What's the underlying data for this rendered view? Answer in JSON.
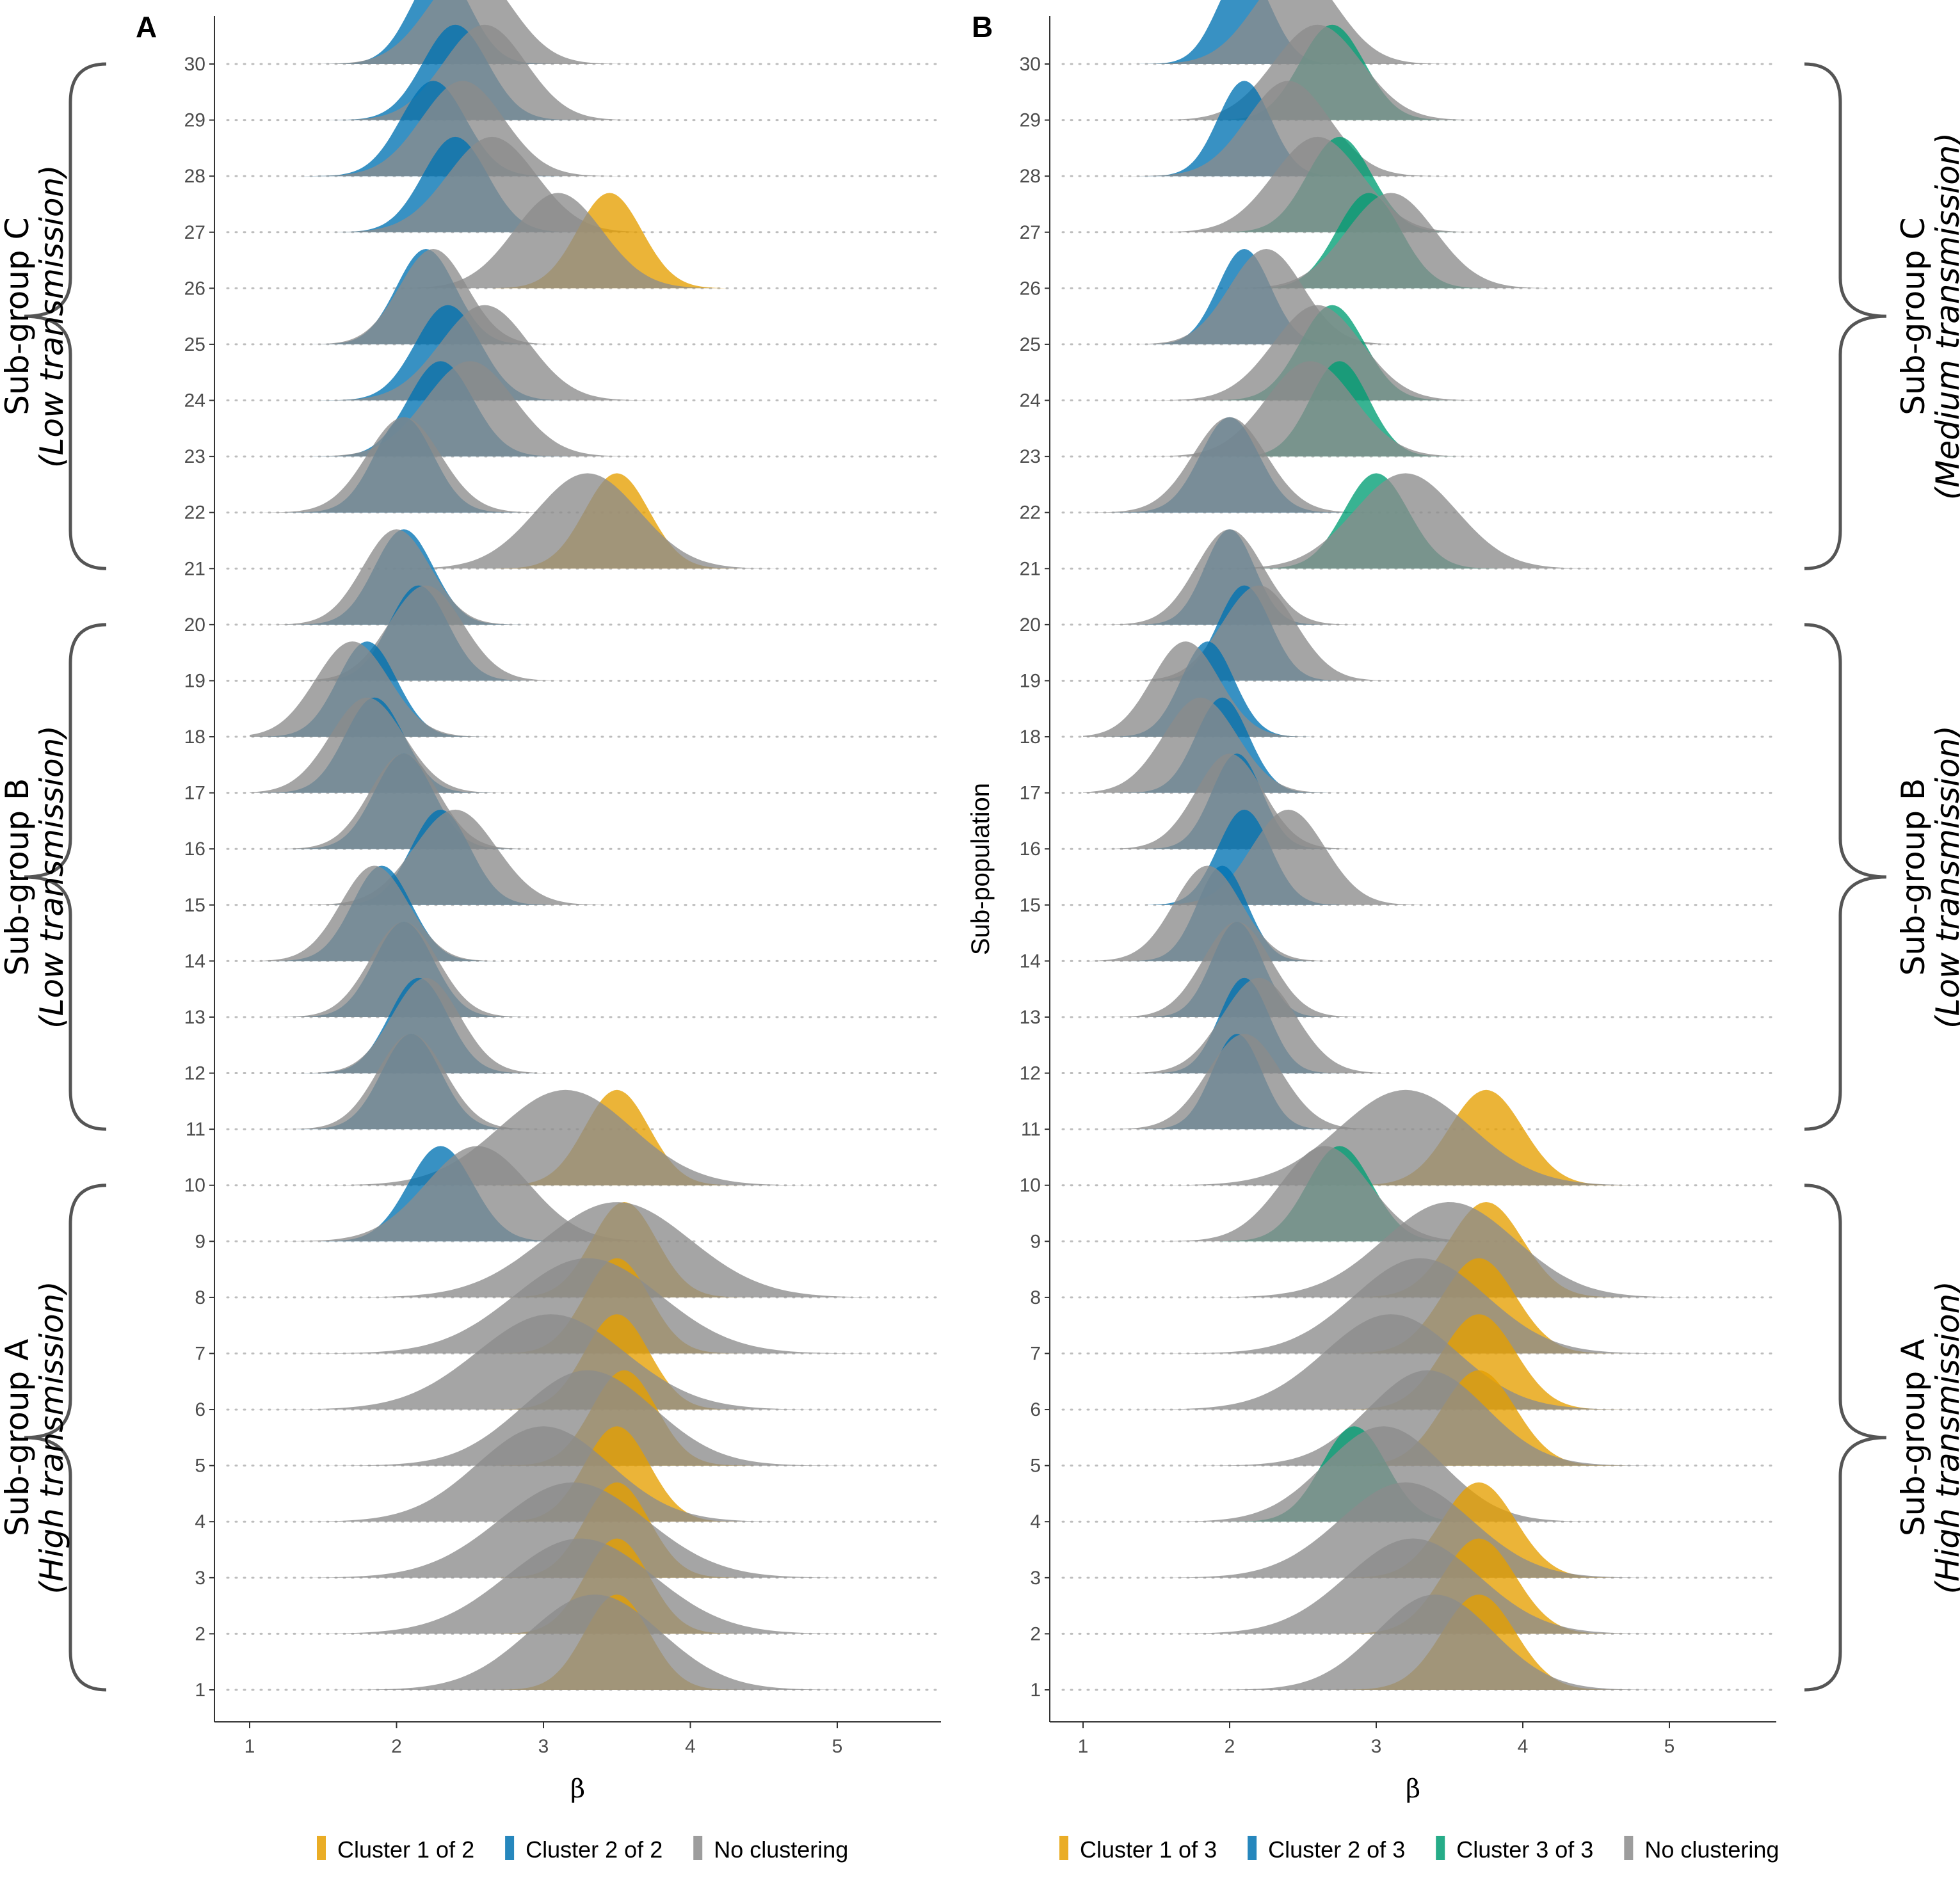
{
  "colors": {
    "cluster_1": "#E69F00",
    "cluster_2": "#0072B2",
    "cluster_3": "#009E73",
    "no_clustering": "#8C8C8C"
  },
  "chart_data": [
    {
      "type": "ridgeline",
      "panel_label": "A",
      "xlabel": "β",
      "ylabel": "",
      "xlim": [
        0.8,
        5.7
      ],
      "xticks": [
        1,
        2,
        3,
        4,
        5
      ],
      "ylim": [
        1,
        30
      ],
      "yticks": [
        1,
        2,
        3,
        4,
        5,
        6,
        7,
        8,
        9,
        10,
        11,
        12,
        13,
        14,
        15,
        16,
        17,
        18,
        19,
        20,
        21,
        22,
        23,
        24,
        25,
        26,
        27,
        28,
        29,
        30
      ],
      "grid": "dotted horizontal baselines",
      "legend": {
        "placement": "bottom",
        "entries": [
          {
            "label": "Cluster 1 of 2",
            "color_key": "cluster_1"
          },
          {
            "label": "Cluster 2 of 2",
            "color_key": "cluster_2"
          },
          {
            "label": "No clustering",
            "color_key": "no_clustering"
          }
        ]
      },
      "groups": [
        {
          "name": "Sub-group A",
          "description": "(High transmission)",
          "range": [
            1,
            10
          ],
          "side": "left"
        },
        {
          "name": "Sub-group B",
          "description": "(Low transmission)",
          "range": [
            11,
            20
          ],
          "side": "left"
        },
        {
          "name": "Sub-group C",
          "description": "(Low transmission)",
          "range": [
            21,
            30
          ],
          "side": "left"
        }
      ],
      "ridges": [
        {
          "row": 1,
          "cluster": {
            "key": "cluster_1",
            "mean": 3.5,
            "sd": 0.22
          },
          "nocl": {
            "mean": 3.35,
            "sd": 0.45
          }
        },
        {
          "row": 2,
          "cluster": {
            "key": "cluster_1",
            "mean": 3.5,
            "sd": 0.22
          },
          "nocl": {
            "mean": 3.25,
            "sd": 0.5
          }
        },
        {
          "row": 3,
          "cluster": {
            "key": "cluster_1",
            "mean": 3.5,
            "sd": 0.22
          },
          "nocl": {
            "mean": 3.2,
            "sd": 0.5
          }
        },
        {
          "row": 4,
          "cluster": {
            "key": "cluster_1",
            "mean": 3.5,
            "sd": 0.22
          },
          "nocl": {
            "mean": 3.0,
            "sd": 0.45
          }
        },
        {
          "row": 5,
          "cluster": {
            "key": "cluster_1",
            "mean": 3.55,
            "sd": 0.22
          },
          "nocl": {
            "mean": 3.3,
            "sd": 0.45
          }
        },
        {
          "row": 6,
          "cluster": {
            "key": "cluster_1",
            "mean": 3.5,
            "sd": 0.22
          },
          "nocl": {
            "mean": 3.05,
            "sd": 0.5
          }
        },
        {
          "row": 7,
          "cluster": {
            "key": "cluster_1",
            "mean": 3.5,
            "sd": 0.22
          },
          "nocl": {
            "mean": 3.3,
            "sd": 0.5
          }
        },
        {
          "row": 8,
          "cluster": {
            "key": "cluster_1",
            "mean": 3.55,
            "sd": 0.22
          },
          "nocl": {
            "mean": 3.5,
            "sd": 0.5
          }
        },
        {
          "row": 9,
          "cluster": {
            "key": "cluster_2",
            "mean": 2.3,
            "sd": 0.22
          },
          "nocl": {
            "mean": 2.55,
            "sd": 0.35
          }
        },
        {
          "row": 10,
          "cluster": {
            "key": "cluster_1",
            "mean": 3.5,
            "sd": 0.22
          },
          "nocl": {
            "mean": 3.15,
            "sd": 0.45
          }
        },
        {
          "row": 11,
          "cluster": {
            "key": "cluster_2",
            "mean": 2.1,
            "sd": 0.2
          },
          "nocl": {
            "mean": 2.1,
            "sd": 0.23
          }
        },
        {
          "row": 12,
          "cluster": {
            "key": "cluster_2",
            "mean": 2.15,
            "sd": 0.2
          },
          "nocl": {
            "mean": 2.2,
            "sd": 0.23
          }
        },
        {
          "row": 13,
          "cluster": {
            "key": "cluster_2",
            "mean": 2.05,
            "sd": 0.2
          },
          "nocl": {
            "mean": 2.05,
            "sd": 0.23
          }
        },
        {
          "row": 14,
          "cluster": {
            "key": "cluster_2",
            "mean": 1.9,
            "sd": 0.2
          },
          "nocl": {
            "mean": 1.85,
            "sd": 0.23
          }
        },
        {
          "row": 15,
          "cluster": {
            "key": "cluster_2",
            "mean": 2.3,
            "sd": 0.2
          },
          "nocl": {
            "mean": 2.4,
            "sd": 0.28
          }
        },
        {
          "row": 16,
          "cluster": {
            "key": "cluster_2",
            "mean": 2.05,
            "sd": 0.2
          },
          "nocl": {
            "mean": 2.05,
            "sd": 0.23
          }
        },
        {
          "row": 17,
          "cluster": {
            "key": "cluster_2",
            "mean": 1.85,
            "sd": 0.2
          },
          "nocl": {
            "mean": 1.8,
            "sd": 0.25
          }
        },
        {
          "row": 18,
          "cluster": {
            "key": "cluster_2",
            "mean": 1.8,
            "sd": 0.2
          },
          "nocl": {
            "mean": 1.7,
            "sd": 0.25
          }
        },
        {
          "row": 19,
          "cluster": {
            "key": "cluster_2",
            "mean": 2.15,
            "sd": 0.2
          },
          "nocl": {
            "mean": 2.2,
            "sd": 0.25
          }
        },
        {
          "row": 20,
          "cluster": {
            "key": "cluster_2",
            "mean": 2.05,
            "sd": 0.2
          },
          "nocl": {
            "mean": 2.0,
            "sd": 0.23
          }
        },
        {
          "row": 21,
          "cluster": {
            "key": "cluster_1",
            "mean": 3.5,
            "sd": 0.22
          },
          "nocl": {
            "mean": 3.3,
            "sd": 0.35
          }
        },
        {
          "row": 22,
          "cluster": {
            "key": "cluster_2",
            "mean": 2.05,
            "sd": 0.2
          },
          "nocl": {
            "mean": 2.05,
            "sd": 0.25
          }
        },
        {
          "row": 23,
          "cluster": {
            "key": "cluster_2",
            "mean": 2.3,
            "sd": 0.22
          },
          "nocl": {
            "mean": 2.5,
            "sd": 0.3
          }
        },
        {
          "row": 24,
          "cluster": {
            "key": "cluster_2",
            "mean": 2.35,
            "sd": 0.22
          },
          "nocl": {
            "mean": 2.6,
            "sd": 0.3
          }
        },
        {
          "row": 25,
          "cluster": {
            "key": "cluster_2",
            "mean": 2.2,
            "sd": 0.2
          },
          "nocl": {
            "mean": 2.25,
            "sd": 0.23
          }
        },
        {
          "row": 26,
          "cluster": {
            "key": "cluster_1",
            "mean": 3.45,
            "sd": 0.22
          },
          "nocl": {
            "mean": 3.1,
            "sd": 0.3
          }
        },
        {
          "row": 27,
          "cluster": {
            "key": "cluster_2",
            "mean": 2.4,
            "sd": 0.22
          },
          "nocl": {
            "mean": 2.65,
            "sd": 0.3
          }
        },
        {
          "row": 28,
          "cluster": {
            "key": "cluster_2",
            "mean": 2.25,
            "sd": 0.22
          },
          "nocl": {
            "mean": 2.45,
            "sd": 0.28
          }
        },
        {
          "row": 29,
          "cluster": {
            "key": "cluster_2",
            "mean": 2.4,
            "sd": 0.22
          },
          "nocl": {
            "mean": 2.6,
            "sd": 0.28
          }
        },
        {
          "row": 30,
          "cluster": {
            "key": "cluster_2",
            "mean": 2.3,
            "sd": 0.2
          },
          "nocl": {
            "mean": 2.5,
            "sd": 0.28
          }
        }
      ]
    },
    {
      "type": "ridgeline",
      "panel_label": "B",
      "xlabel": "β",
      "ylabel": "Sub-population",
      "xlim": [
        0.8,
        5.7
      ],
      "xticks": [
        1,
        2,
        3,
        4,
        5
      ],
      "ylim": [
        1,
        30
      ],
      "yticks": [
        1,
        2,
        3,
        4,
        5,
        6,
        7,
        8,
        9,
        10,
        11,
        12,
        13,
        14,
        15,
        16,
        17,
        18,
        19,
        20,
        21,
        22,
        23,
        24,
        25,
        26,
        27,
        28,
        29,
        30
      ],
      "grid": "dotted horizontal baselines",
      "legend": {
        "placement": "bottom",
        "entries": [
          {
            "label": "Cluster 1 of 3",
            "color_key": "cluster_1"
          },
          {
            "label": "Cluster 2 of 3",
            "color_key": "cluster_2"
          },
          {
            "label": "Cluster 3 of 3",
            "color_key": "cluster_3"
          },
          {
            "label": "No clustering",
            "color_key": "no_clustering"
          }
        ]
      },
      "groups": [
        {
          "name": "Sub-group A",
          "description": "(High transmission)",
          "range": [
            1,
            10
          ],
          "side": "right"
        },
        {
          "name": "Sub-group B",
          "description": "(Low transmission)",
          "range": [
            11,
            20
          ],
          "side": "right"
        },
        {
          "name": "Sub-group C",
          "description": "(Medium transmission)",
          "range": [
            21,
            30
          ],
          "side": "right"
        }
      ],
      "ridges": [
        {
          "row": 1,
          "cluster": {
            "key": "cluster_1",
            "mean": 3.7,
            "sd": 0.25
          },
          "nocl": {
            "mean": 3.4,
            "sd": 0.4
          }
        },
        {
          "row": 2,
          "cluster": {
            "key": "cluster_1",
            "mean": 3.7,
            "sd": 0.25
          },
          "nocl": {
            "mean": 3.25,
            "sd": 0.45
          }
        },
        {
          "row": 3,
          "cluster": {
            "key": "cluster_1",
            "mean": 3.7,
            "sd": 0.25
          },
          "nocl": {
            "mean": 3.2,
            "sd": 0.45
          }
        },
        {
          "row": 4,
          "cluster": {
            "key": "cluster_3",
            "mean": 2.85,
            "sd": 0.22
          },
          "nocl": {
            "mean": 3.05,
            "sd": 0.4
          }
        },
        {
          "row": 5,
          "cluster": {
            "key": "cluster_1",
            "mean": 3.7,
            "sd": 0.25
          },
          "nocl": {
            "mean": 3.35,
            "sd": 0.4
          }
        },
        {
          "row": 6,
          "cluster": {
            "key": "cluster_1",
            "mean": 3.7,
            "sd": 0.25
          },
          "nocl": {
            "mean": 3.1,
            "sd": 0.45
          }
        },
        {
          "row": 7,
          "cluster": {
            "key": "cluster_1",
            "mean": 3.7,
            "sd": 0.25
          },
          "nocl": {
            "mean": 3.3,
            "sd": 0.45
          }
        },
        {
          "row": 8,
          "cluster": {
            "key": "cluster_1",
            "mean": 3.75,
            "sd": 0.25
          },
          "nocl": {
            "mean": 3.5,
            "sd": 0.45
          }
        },
        {
          "row": 9,
          "cluster": {
            "key": "cluster_3",
            "mean": 2.75,
            "sd": 0.22
          },
          "nocl": {
            "mean": 2.65,
            "sd": 0.3
          }
        },
        {
          "row": 10,
          "cluster": {
            "key": "cluster_1",
            "mean": 3.75,
            "sd": 0.25
          },
          "nocl": {
            "mean": 3.2,
            "sd": 0.45
          }
        },
        {
          "row": 11,
          "cluster": {
            "key": "cluster_2",
            "mean": 2.05,
            "sd": 0.17
          },
          "nocl": {
            "mean": 2.1,
            "sd": 0.25
          }
        },
        {
          "row": 12,
          "cluster": {
            "key": "cluster_2",
            "mean": 2.1,
            "sd": 0.17
          },
          "nocl": {
            "mean": 2.2,
            "sd": 0.25
          }
        },
        {
          "row": 13,
          "cluster": {
            "key": "cluster_2",
            "mean": 2.05,
            "sd": 0.17
          },
          "nocl": {
            "mean": 2.05,
            "sd": 0.23
          }
        },
        {
          "row": 14,
          "cluster": {
            "key": "cluster_2",
            "mean": 1.95,
            "sd": 0.17
          },
          "nocl": {
            "mean": 1.85,
            "sd": 0.23
          }
        },
        {
          "row": 15,
          "cluster": {
            "key": "cluster_2",
            "mean": 2.1,
            "sd": 0.18
          },
          "nocl": {
            "mean": 2.4,
            "sd": 0.25
          }
        },
        {
          "row": 16,
          "cluster": {
            "key": "cluster_2",
            "mean": 2.05,
            "sd": 0.17
          },
          "nocl": {
            "mean": 2.0,
            "sd": 0.23
          }
        },
        {
          "row": 17,
          "cluster": {
            "key": "cluster_2",
            "mean": 1.95,
            "sd": 0.18
          },
          "nocl": {
            "mean": 1.8,
            "sd": 0.25
          }
        },
        {
          "row": 18,
          "cluster": {
            "key": "cluster_2",
            "mean": 1.85,
            "sd": 0.18
          },
          "nocl": {
            "mean": 1.7,
            "sd": 0.23
          }
        },
        {
          "row": 19,
          "cluster": {
            "key": "cluster_2",
            "mean": 2.1,
            "sd": 0.18
          },
          "nocl": {
            "mean": 2.2,
            "sd": 0.25
          }
        },
        {
          "row": 20,
          "cluster": {
            "key": "cluster_2",
            "mean": 2.0,
            "sd": 0.17
          },
          "nocl": {
            "mean": 2.0,
            "sd": 0.23
          }
        },
        {
          "row": 21,
          "cluster": {
            "key": "cluster_3",
            "mean": 3.0,
            "sd": 0.22
          },
          "nocl": {
            "mean": 3.2,
            "sd": 0.35
          }
        },
        {
          "row": 22,
          "cluster": {
            "key": "cluster_2",
            "mean": 2.0,
            "sd": 0.2
          },
          "nocl": {
            "mean": 2.0,
            "sd": 0.25
          }
        },
        {
          "row": 23,
          "cluster": {
            "key": "cluster_3",
            "mean": 2.75,
            "sd": 0.2
          },
          "nocl": {
            "mean": 2.55,
            "sd": 0.3
          }
        },
        {
          "row": 24,
          "cluster": {
            "key": "cluster_3",
            "mean": 2.7,
            "sd": 0.22
          },
          "nocl": {
            "mean": 2.6,
            "sd": 0.3
          }
        },
        {
          "row": 25,
          "cluster": {
            "key": "cluster_2",
            "mean": 2.1,
            "sd": 0.18
          },
          "nocl": {
            "mean": 2.25,
            "sd": 0.25
          }
        },
        {
          "row": 26,
          "cluster": {
            "key": "cluster_3",
            "mean": 2.95,
            "sd": 0.22
          },
          "nocl": {
            "mean": 3.1,
            "sd": 0.3
          }
        },
        {
          "row": 27,
          "cluster": {
            "key": "cluster_3",
            "mean": 2.75,
            "sd": 0.22
          },
          "nocl": {
            "mean": 2.6,
            "sd": 0.3
          }
        },
        {
          "row": 28,
          "cluster": {
            "key": "cluster_2",
            "mean": 2.1,
            "sd": 0.18
          },
          "nocl": {
            "mean": 2.4,
            "sd": 0.28
          }
        },
        {
          "row": 29,
          "cluster": {
            "key": "cluster_3",
            "mean": 2.7,
            "sd": 0.22
          },
          "nocl": {
            "mean": 2.6,
            "sd": 0.3
          }
        },
        {
          "row": 30,
          "cluster": {
            "key": "cluster_2",
            "mean": 2.1,
            "sd": 0.18
          },
          "nocl": {
            "mean": 2.45,
            "sd": 0.28
          }
        }
      ]
    }
  ]
}
